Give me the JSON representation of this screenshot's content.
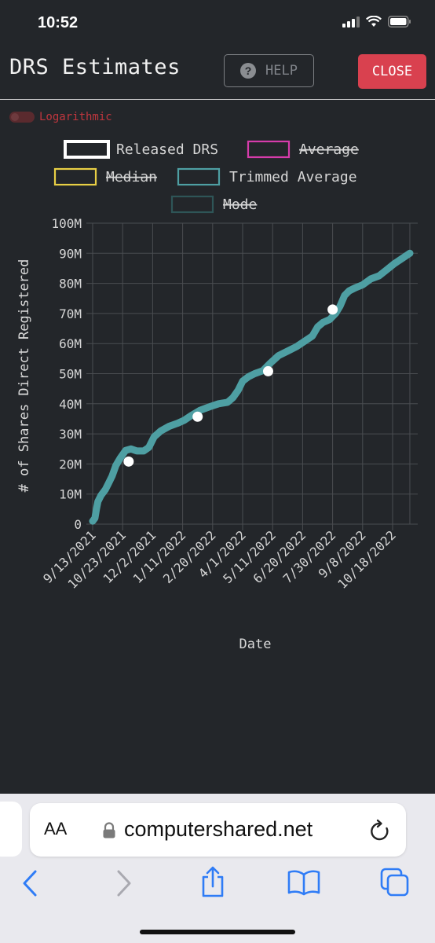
{
  "status_bar": {
    "time": "10:52"
  },
  "header": {
    "title": "DRS Estimates",
    "help_label": "HELP",
    "close_label": "CLOSE"
  },
  "toggle": {
    "label": "Logarithmic"
  },
  "browser": {
    "aa_label": "AA",
    "url": "computershared.net"
  },
  "colors": {
    "released": "#ffffff",
    "average": "#d63cab",
    "median": "#e8cf45",
    "trimmed": "#4e9fa3",
    "mode": "#2e5557"
  },
  "chart_data": {
    "type": "line",
    "xlabel": "Date",
    "ylabel": "# of Shares Direct Registered",
    "ylim": [
      0,
      100000000
    ],
    "y_ticks": [
      "0",
      "10M",
      "20M",
      "30M",
      "40M",
      "50M",
      "60M",
      "70M",
      "80M",
      "90M",
      "100M"
    ],
    "x_ticks": [
      "9/13/2021",
      "10/23/2021",
      "12/2/2021",
      "1/11/2022",
      "2/20/2022",
      "4/1/2022",
      "5/11/2022",
      "6/20/2022",
      "7/30/2022",
      "9/8/2022",
      "10/18/2022"
    ],
    "x_range": [
      "9/13/2021",
      "11/10/2022"
    ],
    "grid": true,
    "legend": [
      {
        "name": "Released DRS",
        "color": "#ffffff",
        "hidden": false
      },
      {
        "name": "Average",
        "color": "#d63cab",
        "hidden": true
      },
      {
        "name": "Median",
        "color": "#e8cf45",
        "hidden": true
      },
      {
        "name": "Trimmed Average",
        "color": "#4e9fa3",
        "hidden": false
      },
      {
        "name": "Mode",
        "color": "#2e5557",
        "hidden": true
      }
    ],
    "series": [
      {
        "name": "Trimmed Average",
        "color": "#4e9fa3",
        "points": [
          [
            "9/13/2021",
            1000000
          ],
          [
            "9/16/2021",
            2000000
          ],
          [
            "9/18/2021",
            5000000
          ],
          [
            "9/20/2021",
            7500000
          ],
          [
            "9/24/2021",
            9500000
          ],
          [
            "9/30/2021",
            11500000
          ],
          [
            "10/4/2021",
            13500000
          ],
          [
            "10/9/2021",
            16000000
          ],
          [
            "10/14/2021",
            19500000
          ],
          [
            "10/20/2021",
            22000000
          ],
          [
            "10/27/2021",
            24500000
          ],
          [
            "11/3/2021",
            25000000
          ],
          [
            "11/11/2021",
            24300000
          ],
          [
            "11/20/2021",
            24300000
          ],
          [
            "11/27/2021",
            25500000
          ],
          [
            "12/4/2021",
            29000000
          ],
          [
            "12/13/2021",
            31000000
          ],
          [
            "12/24/2021",
            32500000
          ],
          [
            "1/4/2022",
            33500000
          ],
          [
            "1/13/2022",
            34500000
          ],
          [
            "1/22/2022",
            36000000
          ],
          [
            "2/3/2022",
            37800000
          ],
          [
            "2/16/2022",
            39000000
          ],
          [
            "2/28/2022",
            40000000
          ],
          [
            "3/12/2022",
            40500000
          ],
          [
            "3/19/2022",
            42000000
          ],
          [
            "3/26/2022",
            44500000
          ],
          [
            "4/1/2022",
            47500000
          ],
          [
            "4/9/2022",
            49000000
          ],
          [
            "4/17/2022",
            50000000
          ],
          [
            "4/28/2022",
            51000000
          ],
          [
            "5/8/2022",
            53500000
          ],
          [
            "5/19/2022",
            56000000
          ],
          [
            "5/31/2022",
            57500000
          ],
          [
            "6/12/2022",
            59000000
          ],
          [
            "6/24/2022",
            61000000
          ],
          [
            "7/3/2022",
            62500000
          ],
          [
            "7/10/2022",
            65500000
          ],
          [
            "7/17/2022",
            67000000
          ],
          [
            "7/26/2022",
            68000000
          ],
          [
            "8/3/2022",
            70000000
          ],
          [
            "8/9/2022",
            72500000
          ],
          [
            "8/15/2022",
            76000000
          ],
          [
            "8/21/2022",
            77500000
          ],
          [
            "8/29/2022",
            78500000
          ],
          [
            "9/8/2022",
            79500000
          ],
          [
            "9/19/2022",
            81500000
          ],
          [
            "9/30/2022",
            82500000
          ],
          [
            "10/10/2022",
            84500000
          ],
          [
            "10/20/2022",
            86500000
          ],
          [
            "10/29/2022",
            88000000
          ],
          [
            "11/10/2022",
            90000000
          ]
        ]
      },
      {
        "name": "Released DRS",
        "color": "#ffffff",
        "points": [
          [
            "10/31/2021",
            20800000
          ],
          [
            "1/31/2022",
            35700000
          ],
          [
            "5/5/2022",
            50800000
          ],
          [
            "7/30/2022",
            71300000
          ]
        ]
      }
    ]
  }
}
